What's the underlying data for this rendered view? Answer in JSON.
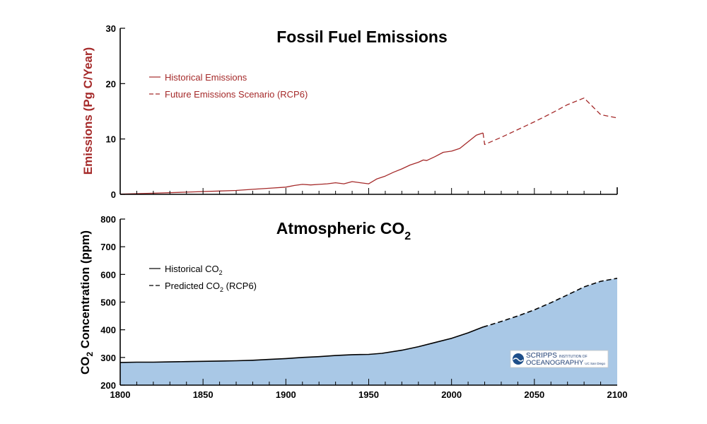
{
  "chart_data": [
    {
      "type": "line",
      "title": "Fossil Fuel Emissions",
      "ylabel": "Emissions (Pg C/Year)",
      "xlabel": "",
      "xlim": [
        1800,
        2100
      ],
      "ylim": [
        0,
        30
      ],
      "yticks": [
        0,
        10,
        20,
        30
      ],
      "ytick_labels": [
        "0",
        "10",
        "20",
        "30"
      ],
      "legend": "top-left",
      "color": "#a52a2a",
      "series": [
        {
          "name": "Historical Emissions",
          "style": "solid",
          "x": [
            1800,
            1820,
            1840,
            1860,
            1870,
            1880,
            1890,
            1900,
            1905,
            1910,
            1915,
            1920,
            1925,
            1930,
            1935,
            1940,
            1945,
            1950,
            1955,
            1960,
            1965,
            1970,
            1975,
            1980,
            1983,
            1985,
            1990,
            1995,
            2000,
            2005,
            2010,
            2015,
            2019
          ],
          "y": [
            0.05,
            0.2,
            0.4,
            0.6,
            0.7,
            0.9,
            1.1,
            1.3,
            1.6,
            1.8,
            1.7,
            1.8,
            1.9,
            2.1,
            1.9,
            2.3,
            2.1,
            1.9,
            2.8,
            3.3,
            4.0,
            4.6,
            5.3,
            5.8,
            6.2,
            6.1,
            6.8,
            7.6,
            7.8,
            8.3,
            9.5,
            10.7,
            11.1
          ]
        },
        {
          "name": "Future Emissions Scenario (RCP6)",
          "style": "dashed",
          "x": [
            2019,
            2020,
            2030,
            2040,
            2050,
            2060,
            2070,
            2080,
            2090,
            2100
          ],
          "y": [
            11.1,
            9.0,
            10.3,
            11.7,
            13.1,
            14.6,
            16.2,
            17.4,
            14.4,
            13.8
          ]
        }
      ]
    },
    {
      "type": "area",
      "title": "Atmospheric CO",
      "title_sub": "2",
      "ylabel": "Concentration (ppm)",
      "ylabel_prefix": "CO",
      "ylabel_sub": "2",
      "xlabel": "",
      "xlim": [
        1800,
        2100
      ],
      "ylim": [
        200,
        800
      ],
      "xticks": [
        1800,
        1850,
        1900,
        1950,
        2000,
        2050,
        2100
      ],
      "xtick_labels": [
        "1800",
        "1850",
        "1900",
        "1950",
        "2000",
        "2050",
        "2100"
      ],
      "yticks": [
        200,
        300,
        400,
        500,
        600,
        700,
        800
      ],
      "ytick_labels": [
        "200",
        "300",
        "400",
        "500",
        "600",
        "700",
        "800"
      ],
      "legend": "top-left",
      "fill_color": "#a9c8e6",
      "series": [
        {
          "name": "Historical CO",
          "name_sub": "2",
          "style": "solid",
          "x": [
            1800,
            1810,
            1820,
            1830,
            1840,
            1850,
            1860,
            1870,
            1880,
            1890,
            1900,
            1910,
            1920,
            1930,
            1940,
            1950,
            1958,
            1970,
            1980,
            1990,
            2000,
            2010,
            2019
          ],
          "y": [
            282,
            283,
            283,
            284,
            285,
            286,
            287,
            288,
            290,
            293,
            296,
            300,
            303,
            307,
            310,
            311,
            315,
            326,
            339,
            354,
            369,
            389,
            410
          ]
        },
        {
          "name": "Predicted CO",
          "name_sub": "2",
          "name_suffix": " (RCP6)",
          "style": "dashed",
          "x": [
            2019,
            2030,
            2040,
            2050,
            2060,
            2070,
            2080,
            2090,
            2100
          ],
          "y": [
            410,
            430,
            450,
            472,
            498,
            526,
            555,
            575,
            586
          ]
        }
      ]
    }
  ],
  "logo": {
    "line1_big": "SCRIPPS",
    "line1_small": "INSTITUTION OF",
    "line2": "OCEANOGRAPHY",
    "line2_small": "UC San Diego"
  }
}
